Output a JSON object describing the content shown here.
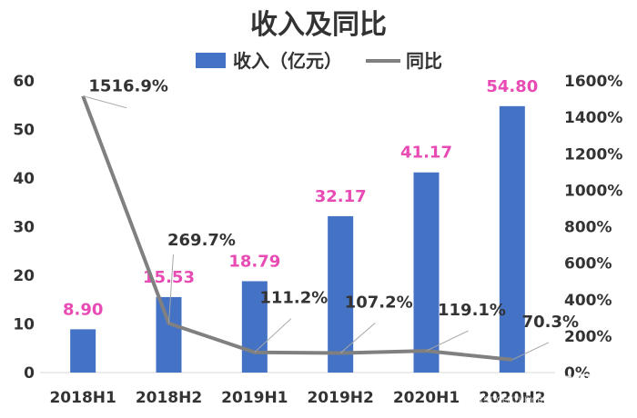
{
  "chart_data": {
    "type": "bar",
    "title": "收入及同比",
    "categories": [
      "2018H1",
      "2018H2",
      "2019H1",
      "2019H2",
      "2020H1",
      "2020H2"
    ],
    "series": [
      {
        "name": "收入（亿元）",
        "type": "bar",
        "axis": "left",
        "color": "#4472c4",
        "values": [
          8.9,
          15.53,
          18.79,
          32.17,
          41.17,
          54.8
        ],
        "labels": [
          "8.90",
          "15.53",
          "18.79",
          "32.17",
          "41.17",
          "54.80"
        ],
        "label_color": "#e84bb4"
      },
      {
        "name": "同比",
        "type": "line",
        "axis": "right",
        "color": "#808080",
        "values": [
          1516.9,
          269.7,
          111.2,
          107.2,
          119.1,
          70.3
        ],
        "labels": [
          "1516.9%",
          "269.7%",
          "111.2%",
          "107.2%",
          "119.1%",
          "70.3%"
        ]
      }
    ],
    "y_left": {
      "ylim": [
        0,
        60
      ],
      "ticks": [
        "0",
        "10",
        "20",
        "30",
        "40",
        "50",
        "60"
      ]
    },
    "y_right": {
      "ylim": [
        0,
        1600
      ],
      "ticks": [
        "0%",
        "200%",
        "400%",
        "600%",
        "800%",
        "1000%",
        "1200%",
        "1400%",
        "1600%"
      ]
    },
    "legend_position": "top",
    "grid": false
  },
  "watermark": {
    "cn": "21世纪经济报道",
    "en": "21ST CENTURY BUSINESS HERALD"
  }
}
